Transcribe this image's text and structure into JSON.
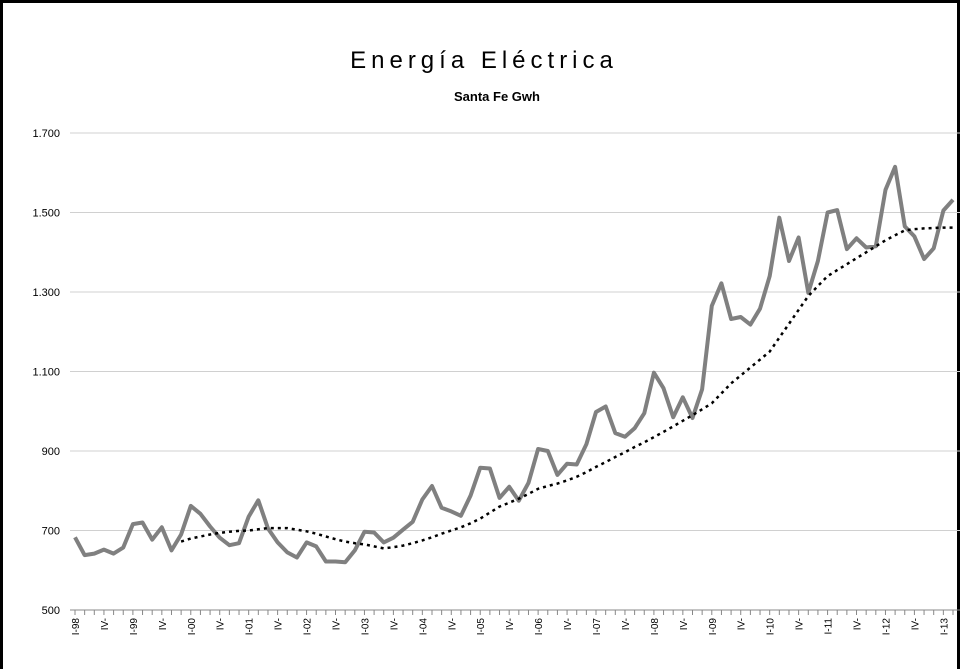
{
  "chart_data": {
    "type": "line",
    "title": "Energía Eléctrica",
    "subtitle": "Santa Fe Gwh",
    "categories": [
      "I-98",
      null,
      null,
      "IV-",
      null,
      null,
      "I-99",
      null,
      null,
      "IV-",
      null,
      null,
      "I-00",
      null,
      null,
      "IV-",
      null,
      null,
      "I-01",
      null,
      null,
      "IV-",
      null,
      null,
      "I-02",
      null,
      null,
      "IV-",
      null,
      null,
      "I-03",
      null,
      null,
      "IV-",
      null,
      null,
      "I-04",
      null,
      null,
      "IV-",
      null,
      null,
      "I-05",
      null,
      null,
      "IV-",
      null,
      null,
      "I-06",
      null,
      null,
      "IV-",
      null,
      null,
      "I-07",
      null,
      null,
      "IV-",
      null,
      null,
      "I-08",
      null,
      null,
      "IV-",
      null,
      null,
      "I-09",
      null,
      null,
      "IV-",
      null,
      null,
      "I-10",
      null,
      null,
      "IV-",
      null,
      null,
      "I-11",
      null,
      null,
      "IV-",
      null,
      null,
      "I-12",
      null,
      null,
      "IV-",
      null,
      null,
      "I-13",
      null
    ],
    "series": [
      {
        "color": "#808080",
        "style": "solid",
        "values": [
          683,
          638,
          642,
          652,
          642,
          657,
          716,
          720,
          677,
          708,
          650,
          690,
          762,
          742,
          710,
          682,
          663,
          668,
          735,
          776,
          705,
          670,
          645,
          632,
          670,
          660,
          622,
          622,
          620,
          650,
          697,
          695,
          670,
          682,
          702,
          722,
          778,
          812,
          757,
          748,
          737,
          788,
          858,
          856,
          782,
          810,
          775,
          820,
          905,
          900,
          840,
          868,
          866,
          917,
          998,
          1012,
          945,
          936,
          957,
          995,
          1097,
          1058,
          985,
          1035,
          983,
          1055,
          1265,
          1322,
          1232,
          1237,
          1218,
          1258,
          1340,
          1487,
          1378,
          1437,
          1298,
          1378,
          1500,
          1506,
          1408,
          1435,
          1412,
          1415,
          1557,
          1615,
          1465,
          1440,
          1383,
          1410,
          1505,
          1532
        ]
      },
      {
        "color": "#000000",
        "style": "dotted",
        "values": [
          null,
          null,
          null,
          null,
          null,
          null,
          null,
          null,
          null,
          null,
          null,
          672,
          680,
          685,
          690,
          694,
          697,
          699,
          700,
          703,
          706,
          706,
          706,
          702,
          698,
          692,
          685,
          678,
          672,
          668,
          665,
          660,
          655,
          658,
          662,
          668,
          675,
          683,
          692,
          700,
          708,
          718,
          730,
          745,
          760,
          770,
          780,
          792,
          805,
          812,
          818,
          826,
          835,
          847,
          860,
          872,
          885,
          897,
          910,
          922,
          935,
          948,
          962,
          976,
          990,
          1005,
          1020,
          1045,
          1070,
          1090,
          1110,
          1130,
          1150,
          1185,
          1220,
          1255,
          1290,
          1315,
          1340,
          1355,
          1370,
          1385,
          1400,
          1415,
          1430,
          1443,
          1455,
          1458,
          1460,
          1461,
          1462,
          1462
        ]
      }
    ],
    "ylim": [
      500,
      1700
    ],
    "yticks": [
      500,
      700,
      900,
      {
        "value": 1100,
        "label": "1.100"
      },
      {
        "value": 1300,
        "label": "1.300"
      },
      {
        "value": 1500,
        "label": "1.500"
      },
      {
        "value": 1700,
        "label": "1.700"
      }
    ],
    "grid": true
  }
}
